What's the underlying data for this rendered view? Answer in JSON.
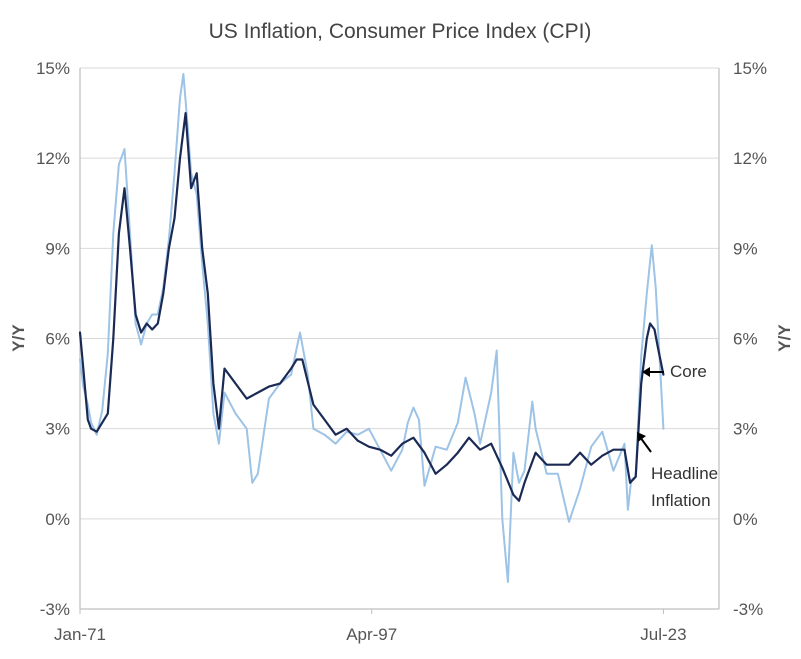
{
  "chart_data": {
    "type": "line",
    "title": "US Inflation, Consumer Price Index (CPI)",
    "ylabel_left": "Y/Y",
    "ylabel_right": "Y/Y",
    "ylim": [
      -3,
      15
    ],
    "y_ticks": [
      -3,
      0,
      3,
      6,
      9,
      12,
      15
    ],
    "y_tick_labels": [
      "-3%",
      "0%",
      "3%",
      "6%",
      "9%",
      "12%",
      "15%"
    ],
    "x_tick_labels": [
      "Jan-71",
      "Apr-97",
      "Jul-23"
    ],
    "xlim": [
      1971.0,
      2028.5
    ],
    "x_tick_values": [
      1971.0,
      1997.25,
      2023.5
    ],
    "grid": true,
    "colors": {
      "core": "#1b2a55",
      "headline": "#9dc3e6",
      "axis_text": "#555555"
    },
    "series": [
      {
        "name": "Core",
        "key": "core",
        "x": [
          1971.0,
          1971.3,
          1971.7,
          1972.0,
          1972.5,
          1973.0,
          1973.5,
          1974.0,
          1974.5,
          1975.0,
          1975.5,
          1976.0,
          1976.5,
          1977.0,
          1977.5,
          1978.0,
          1978.5,
          1979.0,
          1979.5,
          1980.0,
          1980.5,
          1981.0,
          1981.5,
          1982.0,
          1982.5,
          1983.0,
          1983.5,
          1984.0,
          1985.0,
          1986.0,
          1987.0,
          1988.0,
          1989.0,
          1990.0,
          1990.5,
          1991.0,
          1992.0,
          1993.0,
          1994.0,
          1995.0,
          1996.0,
          1997.0,
          1998.0,
          1999.0,
          2000.0,
          2001.0,
          2002.0,
          2003.0,
          2004.0,
          2005.0,
          2006.0,
          2007.0,
          2008.0,
          2009.0,
          2010.0,
          2010.5,
          2011.0,
          2012.0,
          2013.0,
          2014.0,
          2015.0,
          2016.0,
          2017.0,
          2018.0,
          2019.0,
          2020.0,
          2020.5,
          2021.0,
          2021.5,
          2022.0,
          2022.3,
          2022.7,
          2023.0,
          2023.5
        ],
        "values": [
          6.2,
          5.0,
          3.3,
          3.0,
          2.9,
          3.2,
          3.5,
          6.0,
          9.5,
          11.0,
          9.0,
          6.8,
          6.2,
          6.5,
          6.3,
          6.5,
          7.5,
          9.0,
          10.0,
          12.0,
          13.5,
          11.0,
          11.5,
          9.0,
          7.5,
          4.5,
          3.0,
          5.0,
          4.5,
          4.0,
          4.2,
          4.4,
          4.5,
          5.0,
          5.3,
          5.3,
          3.8,
          3.3,
          2.8,
          3.0,
          2.6,
          2.4,
          2.3,
          2.1,
          2.5,
          2.7,
          2.2,
          1.5,
          1.8,
          2.2,
          2.7,
          2.3,
          2.5,
          1.7,
          0.8,
          0.6,
          1.2,
          2.2,
          1.8,
          1.8,
          1.8,
          2.2,
          1.8,
          2.1,
          2.3,
          2.3,
          1.2,
          1.4,
          4.5,
          6.0,
          6.5,
          6.3,
          5.7,
          4.8
        ]
      },
      {
        "name": "Headline Inflation",
        "key": "headline",
        "x": [
          1971.0,
          1971.3,
          1971.7,
          1972.0,
          1972.5,
          1973.0,
          1973.5,
          1974.0,
          1974.5,
          1975.0,
          1975.5,
          1976.0,
          1976.5,
          1977.0,
          1977.5,
          1978.0,
          1978.5,
          1979.0,
          1979.5,
          1980.0,
          1980.3,
          1980.7,
          1981.0,
          1981.5,
          1982.0,
          1982.5,
          1983.0,
          1983.5,
          1984.0,
          1985.0,
          1986.0,
          1986.5,
          1987.0,
          1988.0,
          1989.0,
          1990.0,
          1990.8,
          1991.5,
          1992.0,
          1993.0,
          1994.0,
          1995.0,
          1996.0,
          1997.0,
          1998.0,
          1999.0,
          2000.0,
          2000.5,
          2001.0,
          2001.5,
          2002.0,
          2003.0,
          2004.0,
          2005.0,
          2005.7,
          2006.5,
          2007.0,
          2008.0,
          2008.5,
          2009.0,
          2009.5,
          2010.0,
          2010.5,
          2011.0,
          2011.7,
          2012.0,
          2013.0,
          2014.0,
          2015.0,
          2016.0,
          2017.0,
          2018.0,
          2019.0,
          2020.0,
          2020.3,
          2020.6,
          2021.0,
          2021.5,
          2022.0,
          2022.45,
          2022.8,
          2023.0,
          2023.5
        ],
        "values": [
          5.3,
          4.4,
          3.8,
          3.2,
          2.8,
          3.6,
          5.5,
          9.5,
          11.8,
          12.3,
          9.5,
          6.5,
          5.8,
          6.5,
          6.8,
          6.8,
          7.7,
          9.3,
          11.5,
          14.0,
          14.8,
          13.0,
          11.5,
          10.8,
          8.5,
          6.5,
          3.5,
          2.5,
          4.2,
          3.5,
          3.0,
          1.2,
          1.5,
          4.0,
          4.5,
          4.8,
          6.2,
          4.8,
          3.0,
          2.8,
          2.5,
          2.9,
          2.8,
          3.0,
          2.3,
          1.6,
          2.3,
          3.2,
          3.7,
          3.3,
          1.1,
          2.4,
          2.3,
          3.2,
          4.7,
          3.5,
          2.5,
          4.2,
          5.6,
          0.0,
          -2.1,
          2.2,
          1.2,
          1.6,
          3.9,
          3.0,
          1.5,
          1.5,
          -0.1,
          1.0,
          2.4,
          2.9,
          1.6,
          2.5,
          0.3,
          1.3,
          1.4,
          5.4,
          7.5,
          9.1,
          7.7,
          6.4,
          3.0
        ]
      }
    ],
    "annotations": [
      {
        "target": "core",
        "label": "Core"
      },
      {
        "target": "headline",
        "label_line1": "Headline",
        "label_line2": "Inflation"
      }
    ]
  }
}
